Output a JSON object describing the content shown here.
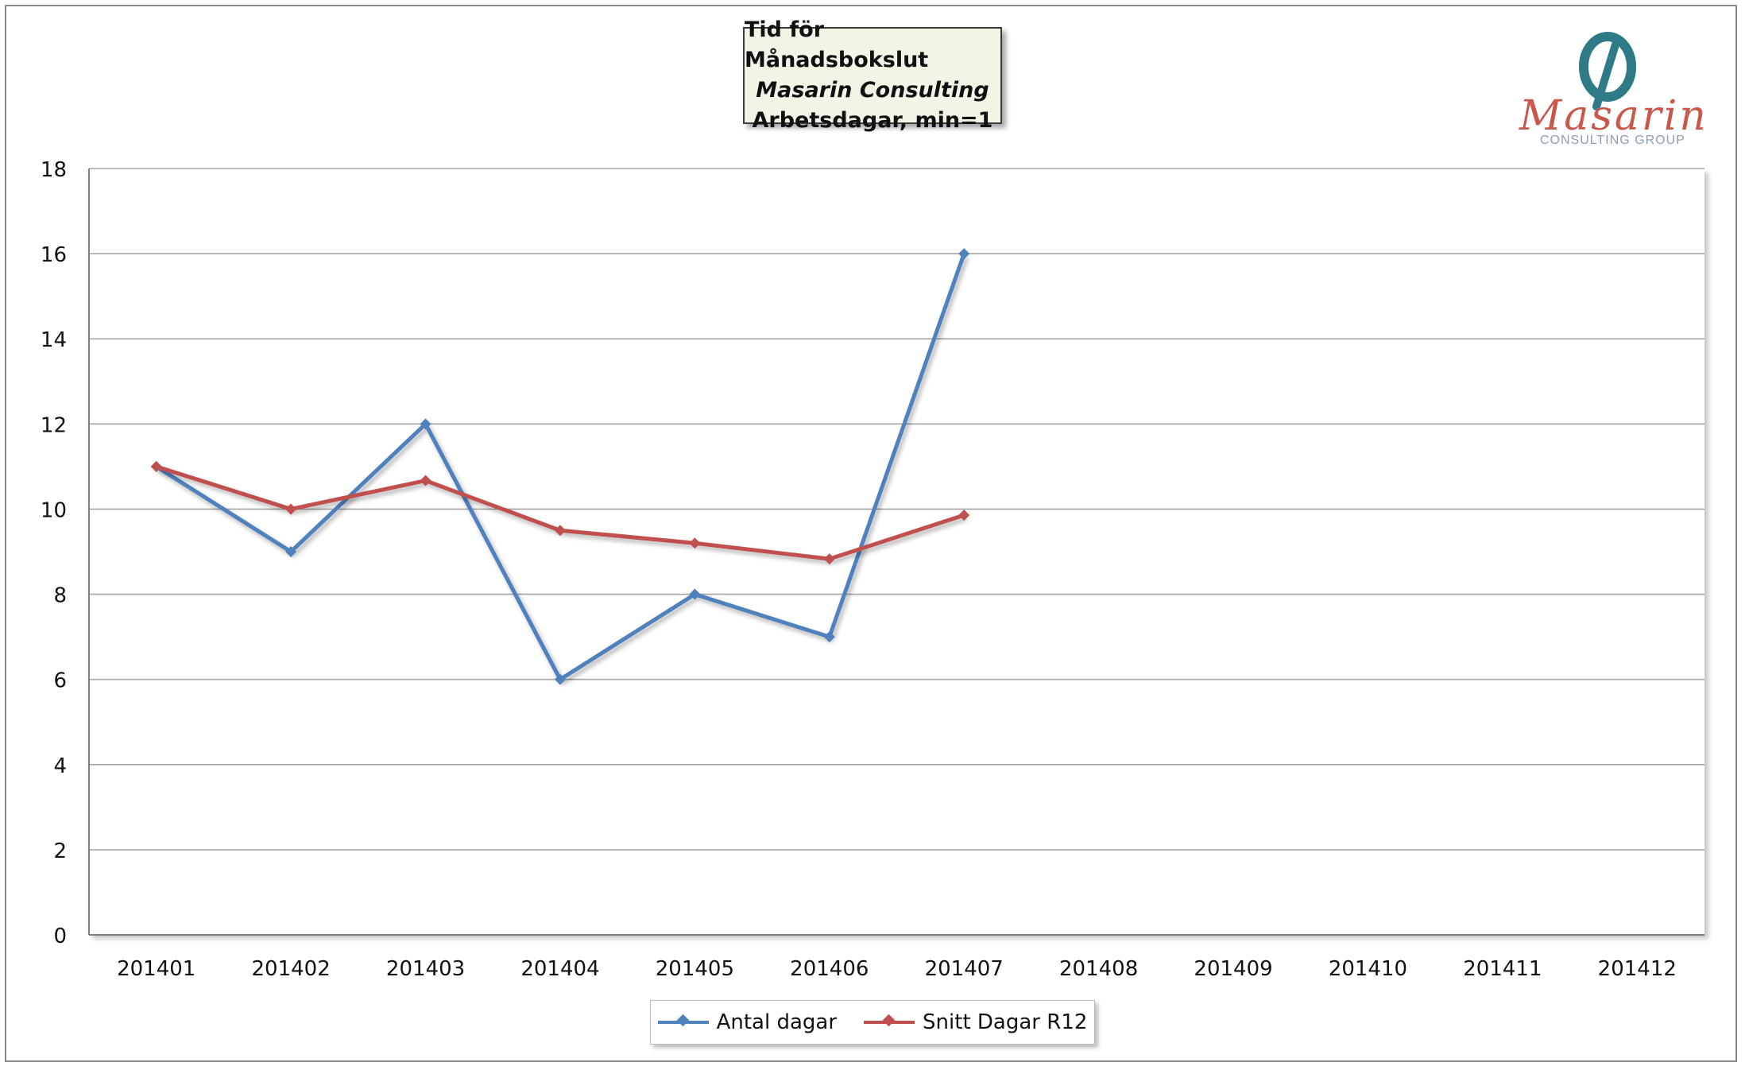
{
  "title": {
    "line1": "Tid för Månadsbokslut",
    "line2": "Masarin Consulting",
    "line3": "Arbetsdagar, min=1"
  },
  "logo": {
    "name": "Masarin",
    "subtitle": "CONSULTING GROUP",
    "mark": "masarin-logo-mark"
  },
  "colors": {
    "series1": "#4f81bd",
    "series2": "#c0504d",
    "grid": "#a6a6a6",
    "axis": "#7f7f7f"
  },
  "chart_data": {
    "type": "line",
    "categories": [
      "201401",
      "201402",
      "201403",
      "201404",
      "201405",
      "201406",
      "201407",
      "201408",
      "201409",
      "201410",
      "201411",
      "201412"
    ],
    "series": [
      {
        "name": "Antal dagar",
        "values": [
          11,
          9,
          12,
          6,
          8,
          7,
          16,
          null,
          null,
          null,
          null,
          null
        ]
      },
      {
        "name": "Snitt Dagar R12",
        "values": [
          11,
          10,
          10.67,
          9.5,
          9.2,
          8.83,
          9.86,
          null,
          null,
          null,
          null,
          null
        ]
      }
    ],
    "ylim": [
      0,
      18
    ],
    "yticks": [
      0,
      2,
      4,
      6,
      8,
      10,
      12,
      14,
      16,
      18
    ],
    "grid": true,
    "legend": "bottom",
    "xlabel": "",
    "ylabel": ""
  }
}
